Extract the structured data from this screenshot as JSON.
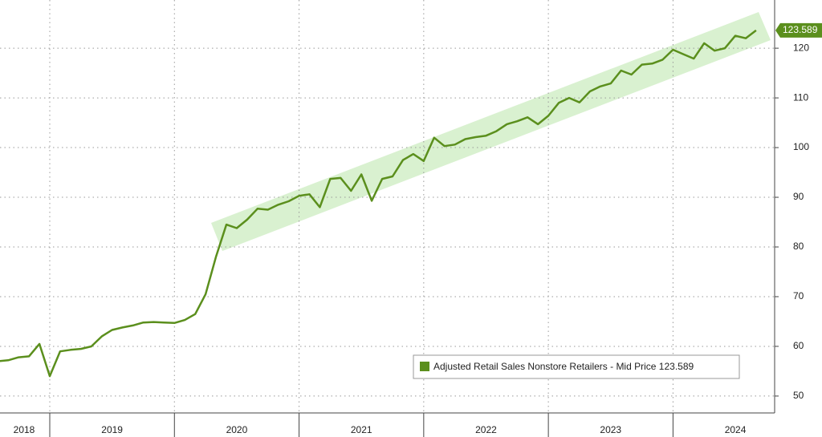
{
  "chart_data": {
    "type": "line",
    "categories": [
      null,
      null,
      "2018",
      null,
      null,
      null,
      null,
      null,
      null,
      null,
      null,
      "2019",
      null,
      null,
      null,
      null,
      null,
      null,
      null,
      null,
      null,
      null,
      null,
      "2020",
      null,
      null,
      null,
      null,
      null,
      null,
      null,
      null,
      null,
      null,
      null,
      "2021",
      null,
      null,
      null,
      null,
      null,
      null,
      null,
      null,
      null,
      null,
      null,
      "2022",
      null,
      null,
      null,
      null,
      null,
      null,
      null,
      null,
      null,
      null,
      null,
      "2023",
      null,
      null,
      null,
      null,
      null,
      null,
      null,
      null,
      null,
      null,
      null,
      "2024",
      null,
      null
    ],
    "series": [
      {
        "name": "Adjusted Retail Sales Nonstore Retailers - Mid Price",
        "color": "#5b8f1d",
        "values": [
          57,
          57.2,
          57.8,
          58,
          60.5,
          54,
          59,
          59.3,
          59.5,
          60,
          62,
          63.3,
          63.8,
          64.2,
          64.8,
          64.9,
          64.8,
          64.7,
          65.3,
          66.5,
          70.5,
          78,
          84.5,
          83.8,
          85.5,
          87.7,
          87.5,
          88.5,
          89.2,
          90.3,
          90.6,
          88,
          93.7,
          93.9,
          91.3,
          94.6,
          89.3,
          93.7,
          94.2,
          97.5,
          98.7,
          97.3,
          102,
          100.3,
          100.6,
          101.7,
          102.1,
          102.4,
          103.3,
          104.7,
          105.3,
          106.1,
          104.7,
          106.4,
          109,
          110,
          109.1,
          111.3,
          112.3,
          112.9,
          115.5,
          114.7,
          116.7,
          116.9,
          117.7,
          119.7,
          118.8,
          117.9,
          121,
          119.5,
          120,
          122.5,
          122,
          123.589
        ]
      }
    ],
    "ylim": [
      46.6,
      129.7
    ],
    "yticks": [
      50,
      60,
      70,
      80,
      90,
      100,
      110,
      120
    ],
    "grid": true
  }
}
